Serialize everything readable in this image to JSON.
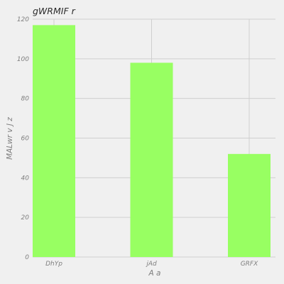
{
  "chart_data": {
    "type": "bar",
    "title": "gWRMIF r",
    "xlabel": "A a",
    "ylabel": "MALwr v J z",
    "categories": [
      "DhYp",
      "jAd",
      "GRFX"
    ],
    "values": [
      117,
      98,
      52
    ],
    "ylim": [
      0,
      120
    ],
    "yticks": [
      0,
      20,
      40,
      60,
      80,
      100,
      120
    ],
    "grid": true,
    "bar_color": "#98ff62",
    "background_color": "#f0f0f0",
    "grid_color": "#cfcfcf"
  }
}
